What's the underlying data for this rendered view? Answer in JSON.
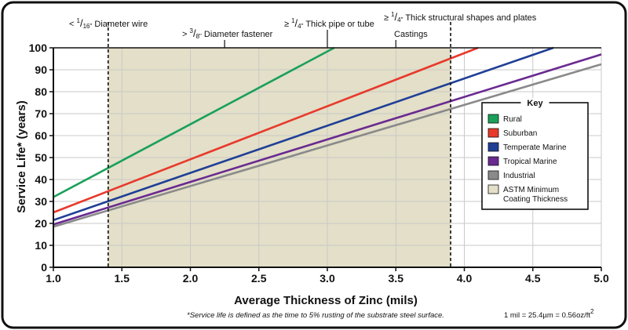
{
  "chart_data": {
    "type": "line",
    "xlabel": "Average Thickness of Zinc (mils)",
    "ylabel": "Service Life* (years)",
    "xlim": [
      1.0,
      5.0
    ],
    "ylim": [
      0,
      100
    ],
    "x_ticks": [
      "1.0",
      "1.5",
      "2.0",
      "2.5",
      "3.0",
      "3.5",
      "4.0",
      "4.5",
      "5.0"
    ],
    "y_ticks": [
      "0",
      "10",
      "20",
      "30",
      "40",
      "50",
      "60",
      "70",
      "80",
      "90",
      "100"
    ],
    "grid": true,
    "series": [
      {
        "name": "Rural",
        "color": "#1aa05a",
        "x": [
          1.0,
          3.05
        ],
        "y": [
          32,
          100
        ]
      },
      {
        "name": "Suburban",
        "color": "#e8392b",
        "x": [
          1.0,
          4.1
        ],
        "y": [
          25,
          100
        ]
      },
      {
        "name": "Temperate Marine",
        "color": "#1f3f96",
        "x": [
          1.0,
          4.65
        ],
        "y": [
          21.5,
          100
        ]
      },
      {
        "name": "Tropical Marine",
        "color": "#6a2a90",
        "x": [
          1.0,
          5.0
        ],
        "y": [
          19.5,
          97
        ]
      },
      {
        "name": "Industrial",
        "color": "#8a8a8a",
        "x": [
          1.0,
          5.0
        ],
        "y": [
          18.5,
          92.5
        ]
      }
    ],
    "shaded_region": {
      "name": "ASTM Minimum Coating Thickness",
      "color": "#e3dfc8",
      "x_start": 1.4,
      "x_end": 3.9
    },
    "legend": {
      "title": "Key",
      "position": "right",
      "items": [
        {
          "label": "Rural",
          "color": "#1aa05a"
        },
        {
          "label": "Suburban",
          "color": "#e8392b"
        },
        {
          "label": "Temperate Marine",
          "color": "#1f3f96"
        },
        {
          "label": "Tropical Marine",
          "color": "#6a2a90"
        },
        {
          "label": "Industrial",
          "color": "#8a8a8a"
        },
        {
          "label": "ASTM Minimum Coating Thickness",
          "line1": "ASTM Minimum",
          "line2": "Coating Thickness",
          "color": "#e3dfc8"
        }
      ]
    },
    "annotations": [
      {
        "id": "diam-wire",
        "prefix": "< ",
        "num": "1",
        "den": "16",
        "unit": "\"",
        "text": "Diameter wire",
        "x": 1.4
      },
      {
        "id": "diam-fastener",
        "prefix": "> ",
        "num": "3",
        "den": "8",
        "unit": "\"",
        "text": "Diameter fastener",
        "x": 2.25
      },
      {
        "id": "thick-pipe",
        "prefix": "≥ ",
        "num": "1",
        "den": "4",
        "unit": "\"",
        "text": "Thick pipe or tube",
        "x": 3.0
      },
      {
        "id": "castings",
        "prefix": "",
        "num": "",
        "den": "",
        "unit": "",
        "text": "Castings",
        "x": 3.5
      },
      {
        "id": "structural",
        "prefix": "≥ ",
        "num": "1",
        "den": "4",
        "unit": "\"",
        "text": "Thick structural shapes and plates",
        "x": 3.9
      }
    ],
    "footnote": "*Service life is defined as the time to 5% rusting of the substrate steel surface.",
    "conversion": "1 mil = 25.4µm = 0.56oz/ft",
    "conversion_sup": "2"
  }
}
